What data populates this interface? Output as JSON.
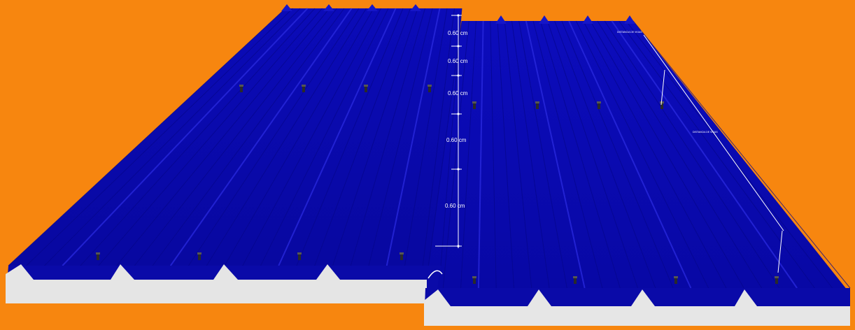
{
  "colors": {
    "background": "#f7860f",
    "panel_blue": "#0a0ab0",
    "panel_blue_dark": "#05058a",
    "panel_blue_light": "#1a1ad0",
    "foam": "#e6e6e6",
    "dimension_line": "#ffffff"
  },
  "dimensions": {
    "spacings": [
      "0.60 cm",
      "0.60 cm",
      "0.60 cm",
      "0.60 cm",
      "0.60 cm"
    ],
    "tiny_labels": [
      "DISTANCIA DE VIGAS",
      "DISTANCIA DE VIGAS"
    ]
  },
  "icons": [
    "screw-icon"
  ]
}
